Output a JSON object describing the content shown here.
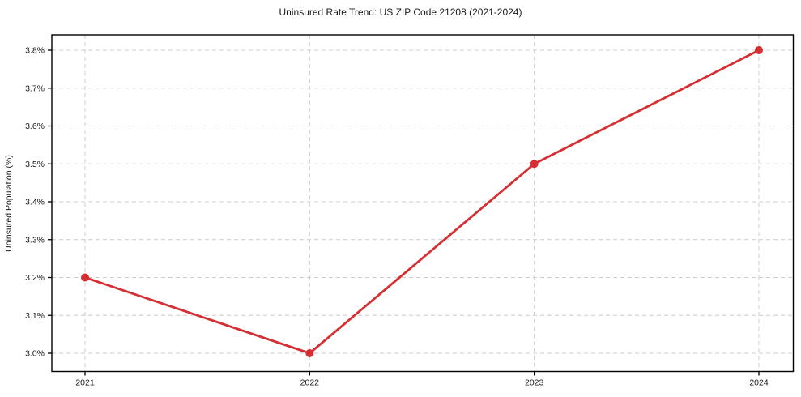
{
  "chart_data": {
    "type": "line",
    "title": "Uninsured Rate Trend: US ZIP Code 21208 (2021-2024)",
    "xlabel": "",
    "ylabel": "Uninsured Population (%)",
    "categories": [
      "2021",
      "2022",
      "2023",
      "2024"
    ],
    "series": [
      {
        "values": [
          3.2,
          3.0,
          3.5,
          3.8
        ],
        "color": "#d62f33",
        "marker": "circle",
        "line_width": 2.8,
        "marker_radius": 5
      }
    ],
    "ylim": [
      3.0,
      3.8
    ],
    "ytick_values": [
      3.0,
      3.1,
      3.2,
      3.3,
      3.4,
      3.5,
      3.6,
      3.7,
      3.8
    ],
    "ytick_labels": [
      "3.0%",
      "3.1%",
      "3.2%",
      "3.3%",
      "3.4%",
      "3.5%",
      "3.6%",
      "3.7%",
      "3.8%"
    ],
    "grid": {
      "style": "dashed",
      "color": "#cccccc",
      "dash": "5,4"
    },
    "axis_color": "#000000",
    "text_color": "#1a1a1a",
    "background": "#ffffff",
    "legend_position": "none"
  }
}
